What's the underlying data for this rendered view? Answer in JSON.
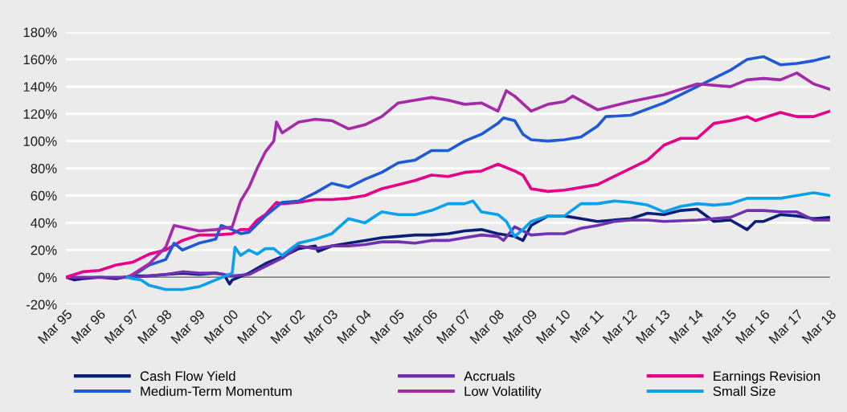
{
  "chart_data": {
    "type": "line",
    "xlim": [
      "1995-03",
      "2018-03"
    ],
    "xticks": [
      {
        "value": "1995-03",
        "label": "Mar 95"
      },
      {
        "value": "1996-03",
        "label": "Mar 96"
      },
      {
        "value": "1997-03",
        "label": "Mar 97"
      },
      {
        "value": "1998-03",
        "label": "Mar 98"
      },
      {
        "value": "1999-03",
        "label": "Mar 99"
      },
      {
        "value": "2000-03",
        "label": "Mar 00"
      },
      {
        "value": "2001-03",
        "label": "Mar 01"
      },
      {
        "value": "2002-03",
        "label": "Mar 02"
      },
      {
        "value": "2003-03",
        "label": "Mar 03"
      },
      {
        "value": "2004-03",
        "label": "Mar 04"
      },
      {
        "value": "2005-03",
        "label": "Mar 05"
      },
      {
        "value": "2006-03",
        "label": "Mar 06"
      },
      {
        "value": "2007-03",
        "label": "Mar 07"
      },
      {
        "value": "2008-03",
        "label": "Mar 08"
      },
      {
        "value": "2009-03",
        "label": "Mar 09"
      },
      {
        "value": "2010-03",
        "label": "Mar 10"
      },
      {
        "value": "2011-03",
        "label": "Mar 11"
      },
      {
        "value": "2012-03",
        "label": "Mar 12"
      },
      {
        "value": "2013-03",
        "label": "Mar 13"
      },
      {
        "value": "2014-03",
        "label": "Mar 14"
      },
      {
        "value": "2015-03",
        "label": "Mar 15"
      },
      {
        "value": "2016-03",
        "label": "Mar 16"
      },
      {
        "value": "2017-03",
        "label": "Mar 17"
      },
      {
        "value": "2018-03",
        "label": "Mar 18"
      }
    ],
    "ylim": [
      -20,
      180
    ],
    "yticks": [
      {
        "value": -20,
        "label": "-20%"
      },
      {
        "value": 0,
        "label": "0%"
      },
      {
        "value": 20,
        "label": "20%"
      },
      {
        "value": 40,
        "label": "40%"
      },
      {
        "value": 60,
        "label": "60%"
      },
      {
        "value": 80,
        "label": "80%"
      },
      {
        "value": 100,
        "label": "100%"
      },
      {
        "value": 120,
        "label": "120%"
      },
      {
        "value": 140,
        "label": "140%"
      },
      {
        "value": 160,
        "label": "160%"
      },
      {
        "value": 180,
        "label": "180%"
      }
    ],
    "grid": "y",
    "legend": "bottom",
    "ref_lines": [
      {
        "axis": "y",
        "value": 0,
        "color": "#7f7f7f"
      }
    ],
    "series": [
      {
        "name": "Cash Flow Yield",
        "color": "#0a1f7a",
        "x": [
          "1995-03",
          "1995-06",
          "1995-09",
          "1996-03",
          "1996-09",
          "1997-03",
          "1997-09",
          "1998-03",
          "1998-09",
          "1999-03",
          "1999-09",
          "1999-12",
          "2000-02",
          "2000-03",
          "2000-09",
          "2001-03",
          "2001-09",
          "2002-03",
          "2002-09",
          "2002-10",
          "2003-03",
          "2003-09",
          "2004-03",
          "2004-09",
          "2005-03",
          "2005-09",
          "2006-03",
          "2006-09",
          "2007-03",
          "2007-09",
          "2008-03",
          "2008-09",
          "2008-12",
          "2009-03",
          "2009-09",
          "2010-03",
          "2010-09",
          "2011-03",
          "2012-03",
          "2012-09",
          "2013-03",
          "2013-09",
          "2014-03",
          "2014-09",
          "2015-03",
          "2015-09",
          "2015-12",
          "2016-03",
          "2016-09",
          "2017-03",
          "2017-09",
          "2018-03"
        ],
        "values": [
          0,
          -2,
          -1,
          0,
          -1,
          1,
          1,
          2,
          3,
          2,
          3,
          2,
          -5,
          -2,
          3,
          10,
          15,
          21,
          23,
          19,
          23,
          25,
          27,
          29,
          30,
          31,
          31,
          32,
          34,
          35,
          32,
          30,
          27,
          38,
          45,
          45,
          43,
          41,
          43,
          47,
          46,
          49,
          50,
          41,
          42,
          35,
          41,
          41,
          46,
          45,
          43,
          44
        ]
      },
      {
        "name": "Accruals",
        "color": "#7030b0",
        "x": [
          "1995-03",
          "1996-03",
          "1997-03",
          "1998-03",
          "1998-09",
          "1999-03",
          "1999-09",
          "2000-03",
          "2000-09",
          "2001-03",
          "2001-09",
          "2002-03",
          "2002-09",
          "2003-03",
          "2003-09",
          "2004-03",
          "2004-09",
          "2005-03",
          "2005-09",
          "2006-03",
          "2006-09",
          "2007-03",
          "2007-09",
          "2008-03",
          "2008-05",
          "2008-09",
          "2009-03",
          "2009-09",
          "2010-03",
          "2010-09",
          "2011-03",
          "2011-09",
          "2012-03",
          "2012-09",
          "2013-03",
          "2014-03",
          "2014-09",
          "2015-03",
          "2015-09",
          "2016-03",
          "2016-09",
          "2017-03",
          "2017-09",
          "2018-03"
        ],
        "values": [
          0,
          0,
          0,
          2,
          4,
          3,
          3,
          1,
          2,
          8,
          14,
          23,
          21,
          23,
          23,
          24,
          26,
          26,
          25,
          27,
          27,
          29,
          31,
          30,
          27,
          37,
          31,
          32,
          32,
          36,
          38,
          41,
          42,
          42,
          41,
          42,
          43,
          44,
          49,
          49,
          48,
          48,
          42,
          42
        ]
      },
      {
        "name": "Earnings Revision",
        "color": "#e6008a",
        "x": [
          "1995-03",
          "1995-09",
          "1996-03",
          "1996-09",
          "1997-03",
          "1997-09",
          "1998-03",
          "1998-09",
          "1999-03",
          "1999-09",
          "2000-03",
          "2000-06",
          "2000-09",
          "2000-12",
          "2001-03",
          "2001-07",
          "2001-09",
          "2002-03",
          "2002-09",
          "2003-03",
          "2003-09",
          "2004-03",
          "2004-09",
          "2005-03",
          "2005-09",
          "2006-03",
          "2006-09",
          "2007-03",
          "2007-09",
          "2008-03",
          "2008-09",
          "2008-12",
          "2009-03",
          "2009-09",
          "2010-03",
          "2011-03",
          "2012-03",
          "2012-09",
          "2013-03",
          "2013-09",
          "2014-03",
          "2014-09",
          "2015-03",
          "2015-09",
          "2015-12",
          "2016-03",
          "2016-09",
          "2017-03",
          "2017-09",
          "2018-03"
        ],
        "values": [
          0,
          4,
          5,
          9,
          11,
          17,
          20,
          27,
          31,
          31,
          32,
          35,
          35,
          42,
          46,
          55,
          54,
          55,
          57,
          57,
          58,
          60,
          65,
          68,
          71,
          75,
          74,
          77,
          78,
          83,
          78,
          75,
          65,
          63,
          64,
          68,
          80,
          86,
          97,
          102,
          102,
          113,
          115,
          118,
          115,
          117,
          121,
          118,
          118,
          122
        ]
      },
      {
        "name": "Medium-Term Momentum",
        "color": "#1f5ad6",
        "x": [
          "1997-01",
          "1997-03",
          "1997-09",
          "1998-03",
          "1998-06",
          "1998-09",
          "1999-03",
          "1999-09",
          "1999-11",
          "2000-03",
          "2000-06",
          "2000-09",
          "2001-03",
          "2001-09",
          "2002-03",
          "2002-09",
          "2003-03",
          "2003-09",
          "2004-03",
          "2004-09",
          "2005-03",
          "2005-09",
          "2006-03",
          "2006-09",
          "2007-03",
          "2007-09",
          "2008-03",
          "2008-05",
          "2008-09",
          "2008-12",
          "2009-03",
          "2009-09",
          "2010-03",
          "2010-09",
          "2011-03",
          "2011-06",
          "2012-03",
          "2013-03",
          "2014-03",
          "2015-03",
          "2015-09",
          "2016-03",
          "2016-09",
          "2017-03",
          "2017-09",
          "2018-03"
        ],
        "values": [
          0,
          1,
          9,
          13,
          25,
          20,
          25,
          28,
          38,
          35,
          32,
          33,
          45,
          55,
          56,
          62,
          69,
          66,
          72,
          77,
          84,
          86,
          93,
          93,
          100,
          105,
          113,
          117,
          115,
          105,
          101,
          100,
          101,
          103,
          111,
          118,
          119,
          128,
          140,
          152,
          160,
          162,
          156,
          157,
          159,
          162
        ]
      },
      {
        "name": "Low Volatility",
        "color": "#a62aa8",
        "x": [
          "1997-01",
          "1997-03",
          "1997-09",
          "1998-03",
          "1998-06",
          "1999-03",
          "1999-09",
          "2000-03",
          "2000-06",
          "2000-09",
          "2000-12",
          "2001-03",
          "2001-06",
          "2001-07",
          "2001-09",
          "2002-03",
          "2002-09",
          "2003-03",
          "2003-09",
          "2004-03",
          "2004-09",
          "2005-03",
          "2005-09",
          "2006-03",
          "2006-09",
          "2007-03",
          "2007-09",
          "2008-03",
          "2008-06",
          "2008-09",
          "2009-03",
          "2009-09",
          "2010-03",
          "2010-06",
          "2011-03",
          "2012-03",
          "2013-03",
          "2014-03",
          "2015-03",
          "2015-09",
          "2016-03",
          "2016-09",
          "2017-03",
          "2017-09",
          "2018-03"
        ],
        "values": [
          0,
          2,
          10,
          22,
          38,
          34,
          35,
          37,
          56,
          66,
          80,
          92,
          100,
          114,
          106,
          114,
          116,
          115,
          109,
          112,
          118,
          128,
          130,
          132,
          130,
          127,
          128,
          122,
          137,
          133,
          122,
          127,
          129,
          133,
          123,
          129,
          134,
          142,
          140,
          145,
          146,
          145,
          150,
          142,
          138
        ]
      },
      {
        "name": "Small Size",
        "color": "#0aa0f0",
        "x": [
          "1997-01",
          "1997-03",
          "1997-06",
          "1997-09",
          "1998-03",
          "1998-09",
          "1999-03",
          "1999-09",
          "2000-03",
          "2000-04",
          "2000-06",
          "2000-09",
          "2000-12",
          "2001-03",
          "2001-06",
          "2001-09",
          "2002-03",
          "2002-09",
          "2003-03",
          "2003-09",
          "2004-03",
          "2004-09",
          "2005-03",
          "2005-09",
          "2006-03",
          "2006-09",
          "2007-03",
          "2007-06",
          "2007-09",
          "2008-03",
          "2008-06",
          "2008-09",
          "2008-12",
          "2009-03",
          "2009-09",
          "2010-03",
          "2010-09",
          "2011-03",
          "2011-09",
          "2012-03",
          "2012-09",
          "2013-03",
          "2013-09",
          "2014-03",
          "2014-09",
          "2015-03",
          "2015-09",
          "2016-03",
          "2016-09",
          "2017-03",
          "2017-09",
          "2018-03"
        ],
        "values": [
          0,
          -1,
          -2,
          -6,
          -9,
          -9,
          -7,
          -2,
          3,
          22,
          16,
          20,
          17,
          21,
          21,
          16,
          25,
          28,
          32,
          43,
          40,
          48,
          46,
          46,
          49,
          54,
          54,
          56,
          48,
          46,
          41,
          30,
          35,
          41,
          45,
          45,
          54,
          54,
          56,
          55,
          53,
          48,
          52,
          54,
          53,
          54,
          58,
          58,
          58,
          60,
          62,
          60
        ]
      }
    ]
  }
}
